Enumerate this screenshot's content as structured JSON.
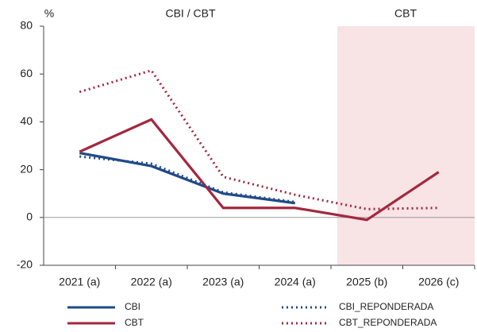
{
  "chart_data": {
    "type": "line",
    "y_unit": "%",
    "annotations": [
      "CBI / CBT",
      "CBT"
    ],
    "categories": [
      "2021 (a)",
      "2022 (a)",
      "2023 (a)",
      "2024 (a)",
      "2025 (b)",
      "2026 (c)"
    ],
    "series": [
      {
        "name": "CBI",
        "color": "#1f4a87",
        "dashed": false,
        "values": [
          27,
          21.5,
          10,
          6,
          null,
          null
        ]
      },
      {
        "name": "CBT",
        "color": "#a3283f",
        "dashed": false,
        "values": [
          27.5,
          41,
          4,
          4,
          -1,
          19
        ]
      },
      {
        "name": "CBI_REPONDERADA",
        "color": "#1f4a87",
        "dashed": true,
        "values": [
          25.5,
          22.5,
          10.5,
          6.5,
          null,
          null
        ]
      },
      {
        "name": "CBT_REPONDERADA",
        "color": "#a3283f",
        "dashed": true,
        "values": [
          52.5,
          61.5,
          17,
          9.5,
          3.5,
          4
        ]
      }
    ],
    "ylim": [
      -20,
      80
    ],
    "yticks": [
      -20,
      0,
      20,
      40,
      60,
      80
    ],
    "grid": false
  }
}
